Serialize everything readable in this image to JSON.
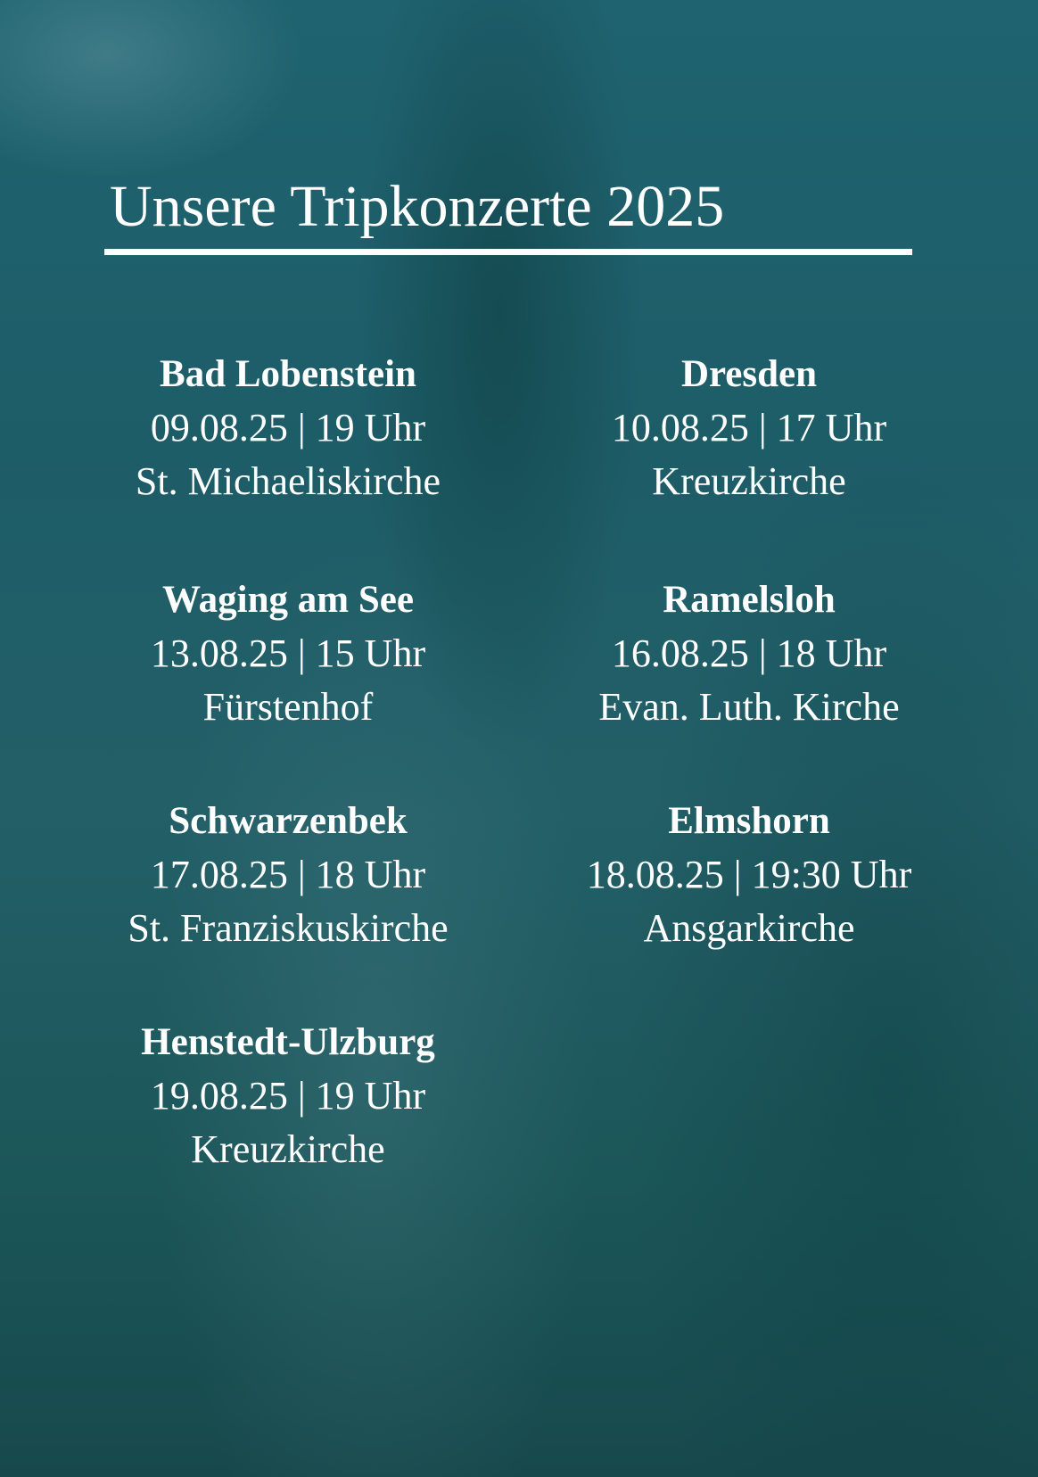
{
  "title": "Unsere Tripkonzerte 2025",
  "events": [
    {
      "city": "Bad Lobenstein",
      "datetime": "09.08.25 | 19 Uhr",
      "venue": "St. Michaeliskirche"
    },
    {
      "city": "Dresden",
      "datetime": "10.08.25 | 17 Uhr",
      "venue": "Kreuzkirche"
    },
    {
      "city": "Waging am See",
      "datetime": "13.08.25 | 15 Uhr",
      "venue": "Fürstenhof"
    },
    {
      "city": "Ramelsloh",
      "datetime": "16.08.25 | 18 Uhr",
      "venue": "Evan. Luth. Kirche"
    },
    {
      "city": "Schwarzenbek",
      "datetime": "17.08.25 | 18 Uhr",
      "venue": "St. Franziskuskirche"
    },
    {
      "city": "Elmshorn",
      "datetime": "18.08.25 | 19:30 Uhr",
      "venue": "Ansgarkirche"
    },
    {
      "city": "Henstedt-Ulzburg",
      "datetime": "19.08.25 | 19 Uhr",
      "venue": "Kreuzkirche"
    }
  ],
  "colors": {
    "overlay": "#1f6370",
    "text": "#ffffff"
  }
}
